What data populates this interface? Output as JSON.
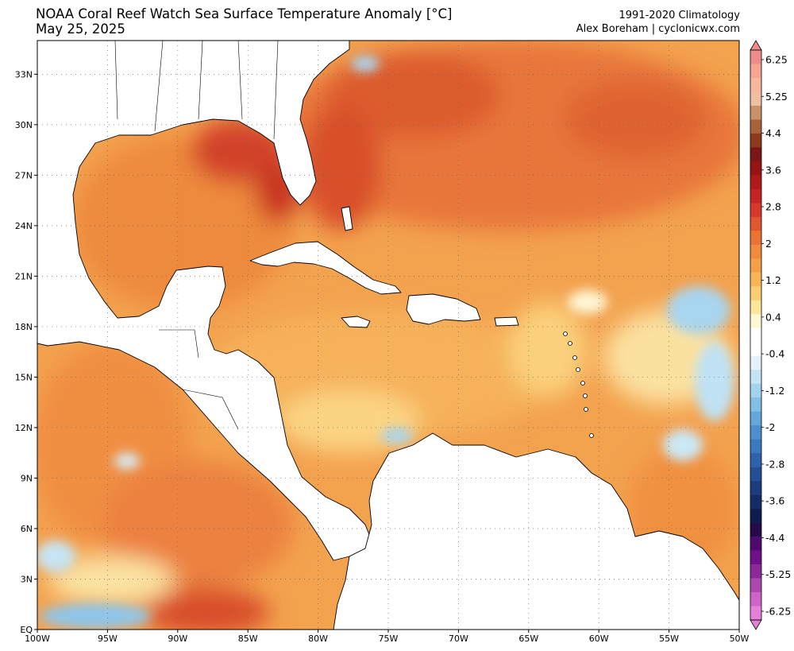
{
  "header": {
    "title": "NOAA Coral Reef Watch Sea Surface Temperature Anomaly [°C]",
    "date": "May 25, 2025",
    "climatology": "1991-2020 Climatology",
    "credit": "Alex Boreham | cyclonicwx.com"
  },
  "map": {
    "lon_range": [
      -100,
      -50
    ],
    "lat_range": [
      0,
      35
    ],
    "lon_labels": [
      "100W",
      "95W",
      "90W",
      "85W",
      "80W",
      "75W",
      "70W",
      "65W",
      "60W",
      "55W",
      "50W"
    ],
    "lat_labels": [
      "EQ",
      "3N",
      "6N",
      "9N",
      "12N",
      "15N",
      "18N",
      "21N",
      "24N",
      "27N",
      "30N",
      "33N"
    ],
    "gridlines": true
  },
  "colorbar": {
    "labels": [
      "6.25",
      "5.25",
      "4.4",
      "3.6",
      "2.8",
      "2",
      "1.2",
      "0.4",
      "-0.4",
      "-1.2",
      "-2",
      "-2.8",
      "-3.6",
      "-4.4",
      "-5.25",
      "-6.25"
    ],
    "colors": [
      "#f08b8b",
      "#f6a592",
      "#f6b79c",
      "#eebfa2",
      "#c99168",
      "#a8633c",
      "#8c3a1e",
      "#7a1712",
      "#961414",
      "#b01a1a",
      "#c42424",
      "#d6382b",
      "#e0562f",
      "#ea7334",
      "#f08a3c",
      "#f5a048",
      "#f8b556",
      "#fbcd72",
      "#fde69a",
      "#fff8d2",
      "#ffffff",
      "#ffffff",
      "#e4f3fb",
      "#c5e5f5",
      "#a4d3ee",
      "#82bfe5",
      "#63a8da",
      "#4c8fcc",
      "#3b78bd",
      "#2f62aa",
      "#264e95",
      "#1d3c80",
      "#152b68",
      "#0d1c50",
      "#250a4a",
      "#4e0a6e",
      "#6e1088",
      "#8c2a9c",
      "#ad48b0",
      "#cd64c6",
      "#e480d8"
    ]
  }
}
